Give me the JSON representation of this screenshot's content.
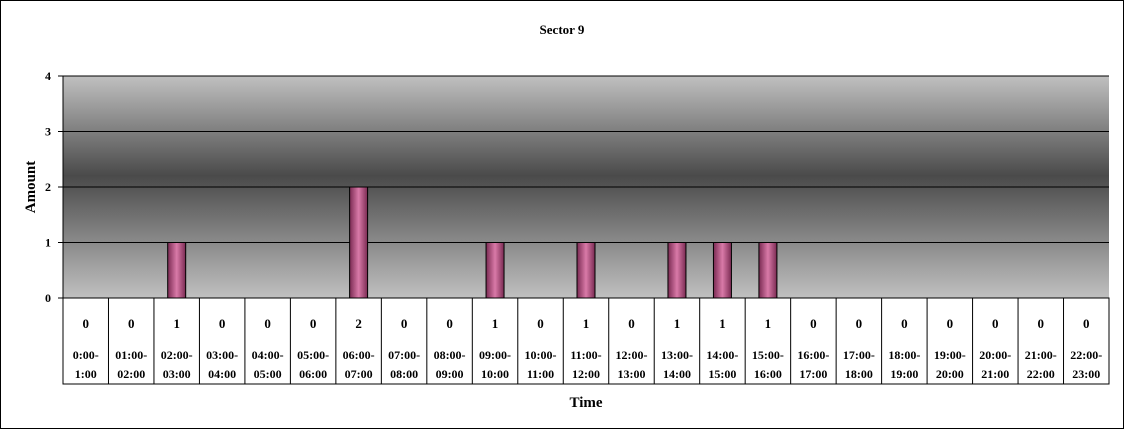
{
  "chart_data": {
    "type": "bar",
    "title": "Sector 9",
    "xlabel": "Time",
    "ylabel": "Amount",
    "ylim": [
      0,
      4
    ],
    "yticks": [
      "0",
      "1",
      "2",
      "3",
      "4"
    ],
    "grid": true,
    "legend": "none",
    "categories": [
      [
        "0:00-",
        "1:00"
      ],
      [
        "01:00-",
        "02:00"
      ],
      [
        "02:00-",
        "03:00"
      ],
      [
        "03:00-",
        "04:00"
      ],
      [
        "04:00-",
        "05:00"
      ],
      [
        "05:00-",
        "06:00"
      ],
      [
        "06:00-",
        "07:00"
      ],
      [
        "07:00-",
        "08:00"
      ],
      [
        "08:00-",
        "09:00"
      ],
      [
        "09:00-",
        "10:00"
      ],
      [
        "10:00-",
        "11:00"
      ],
      [
        "11:00-",
        "12:00"
      ],
      [
        "12:00-",
        "13:00"
      ],
      [
        "13:00-",
        "14:00"
      ],
      [
        "14:00-",
        "15:00"
      ],
      [
        "15:00-",
        "16:00"
      ],
      [
        "16:00-",
        "17:00"
      ],
      [
        "17:00-",
        "18:00"
      ],
      [
        "18:00-",
        "19:00"
      ],
      [
        "19:00-",
        "20:00"
      ],
      [
        "20:00-",
        "21:00"
      ],
      [
        "21:00-",
        "22:00"
      ],
      [
        "22:00-",
        "23:00"
      ]
    ],
    "values": [
      0,
      0,
      1,
      0,
      0,
      0,
      2,
      0,
      0,
      1,
      0,
      1,
      0,
      1,
      1,
      1,
      0,
      0,
      0,
      0,
      0,
      0,
      0
    ],
    "colors": {
      "bar": "#d97aa8",
      "bar_dark": "#7a2a52",
      "plot_edge": "#c0c0c0",
      "plot_mid": "#4a4a4a"
    }
  }
}
